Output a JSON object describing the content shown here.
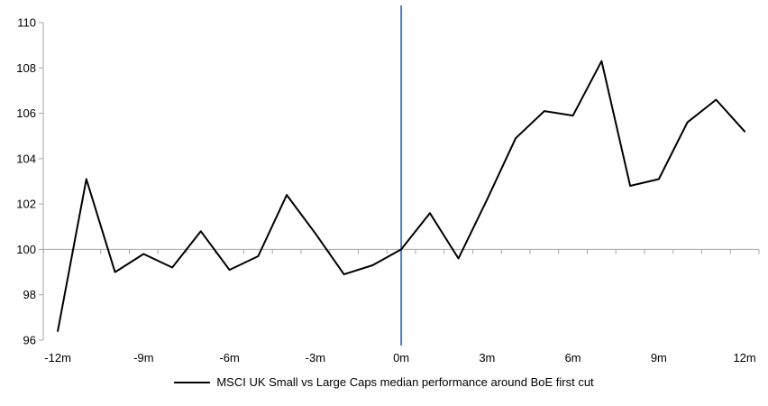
{
  "chart_data": {
    "type": "line",
    "title": "",
    "x": [
      -12,
      -11,
      -10,
      -9,
      -8,
      -7,
      -6,
      -5,
      -4,
      -3,
      -2,
      -1,
      0,
      1,
      2,
      3,
      4,
      5,
      6,
      7,
      8,
      9,
      10,
      11,
      12
    ],
    "series": [
      {
        "name": "MSCI UK Small vs Large Caps median performance around BoE first cut",
        "values": [
          96.4,
          103.1,
          99.0,
          99.8,
          99.2,
          100.8,
          99.1,
          99.7,
          102.4,
          100.7,
          98.9,
          99.3,
          100.0,
          101.6,
          99.6,
          102.2,
          104.9,
          106.1,
          105.9,
          108.3,
          102.8,
          103.1,
          105.6,
          106.6,
          105.2
        ]
      }
    ],
    "ylim": [
      96,
      110
    ],
    "y_ticks": [
      110,
      108,
      106,
      104,
      102,
      100,
      98,
      96
    ],
    "y_tick_labels": [
      "110",
      "108",
      "106",
      "104",
      "102",
      "100",
      "98",
      "96"
    ],
    "x_tick_values": [
      -12,
      -9,
      -6,
      -3,
      0,
      3,
      6,
      9,
      12
    ],
    "x_tick_labels": [
      "-12m",
      "-9m",
      "-6m",
      "-3m",
      "0m",
      "3m",
      "6m",
      "9m",
      "12m"
    ],
    "baseline_value": 100,
    "event_line_x": 0,
    "grid": "baseline-only",
    "legend_position": "bottom",
    "colors": {
      "series_line": "#000000",
      "event_line": "#4f81bd",
      "axis_line": "#a6a6a6",
      "tick_label": "#000000"
    }
  },
  "legend": {
    "label": "MSCI UK Small vs Large Caps median performance around BoE first cut"
  }
}
